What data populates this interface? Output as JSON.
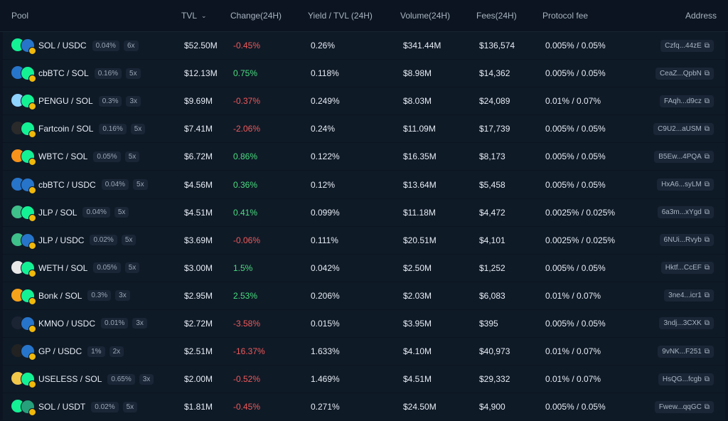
{
  "header": {
    "pool": "Pool",
    "tvl": "TVL",
    "change": "Change(24H)",
    "yield": "Yield / TVL (24H)",
    "volume": "Volume(24H)",
    "fees": "Fees(24H)",
    "protocol_fee": "Protocol fee",
    "address": "Address"
  },
  "rows": [
    {
      "pair": "SOL / USDC",
      "fee_tier": "0.04%",
      "lev": "6x",
      "tvl": "$52.50M",
      "change": "-0.45%",
      "dir": "down",
      "yield": "0.26%",
      "volume": "$341.44M",
      "fees": "$136,574",
      "protocol": "0.005% / 0.05%",
      "address": "Czfq...44zE",
      "icon_a": "sol-icon",
      "icon_b": "usdc-icon",
      "color_a": "#14f195",
      "color_b": "#2775ca"
    },
    {
      "pair": "cbBTC / SOL",
      "fee_tier": "0.16%",
      "lev": "5x",
      "tvl": "$12.13M",
      "change": "0.75%",
      "dir": "up",
      "yield": "0.118%",
      "volume": "$8.98M",
      "fees": "$14,362",
      "protocol": "0.005% / 0.05%",
      "address": "CeaZ...QpbN",
      "icon_a": "cbbtc-icon",
      "icon_b": "sol-icon",
      "color_a": "#2775ca",
      "color_b": "#14f195"
    },
    {
      "pair": "PENGU / SOL",
      "fee_tier": "0.3%",
      "lev": "3x",
      "tvl": "$9.69M",
      "change": "-0.37%",
      "dir": "down",
      "yield": "0.249%",
      "volume": "$8.03M",
      "fees": "$24,089",
      "protocol": "0.01% / 0.07%",
      "address": "FAqh...d9cz",
      "icon_a": "pengu-icon",
      "icon_b": "sol-icon",
      "color_a": "#8fd3ff",
      "color_b": "#14f195"
    },
    {
      "pair": "Fartcoin / SOL",
      "fee_tier": "0.16%",
      "lev": "5x",
      "tvl": "$7.41M",
      "change": "-2.06%",
      "dir": "down",
      "yield": "0.24%",
      "volume": "$11.09M",
      "fees": "$17,739",
      "protocol": "0.005% / 0.05%",
      "address": "C9U2...aUSM",
      "icon_a": "fartcoin-icon",
      "icon_b": "sol-icon",
      "color_a": "#2a2a2a",
      "color_b": "#14f195"
    },
    {
      "pair": "WBTC / SOL",
      "fee_tier": "0.05%",
      "lev": "5x",
      "tvl": "$6.72M",
      "change": "0.86%",
      "dir": "up",
      "yield": "0.122%",
      "volume": "$16.35M",
      "fees": "$8,173",
      "protocol": "0.005% / 0.05%",
      "address": "B5Ew...4PQA",
      "icon_a": "wbtc-icon",
      "icon_b": "sol-icon",
      "color_a": "#f7931a",
      "color_b": "#14f195"
    },
    {
      "pair": "cbBTC / USDC",
      "fee_tier": "0.04%",
      "lev": "5x",
      "tvl": "$4.56M",
      "change": "0.36%",
      "dir": "up",
      "yield": "0.12%",
      "volume": "$13.64M",
      "fees": "$5,458",
      "protocol": "0.005% / 0.05%",
      "address": "HxA6...syLM",
      "icon_a": "cbbtc-icon",
      "icon_b": "usdc-icon",
      "color_a": "#2775ca",
      "color_b": "#2775ca"
    },
    {
      "pair": "JLP / SOL",
      "fee_tier": "0.04%",
      "lev": "5x",
      "tvl": "$4.51M",
      "change": "0.41%",
      "dir": "up",
      "yield": "0.099%",
      "volume": "$11.18M",
      "fees": "$4,472",
      "protocol": "0.0025% / 0.025%",
      "address": "6a3m...xYgd",
      "icon_a": "jlp-icon",
      "icon_b": "sol-icon",
      "color_a": "#3fbf8a",
      "color_b": "#14f195"
    },
    {
      "pair": "JLP / USDC",
      "fee_tier": "0.02%",
      "lev": "5x",
      "tvl": "$3.69M",
      "change": "-0.06%",
      "dir": "down",
      "yield": "0.111%",
      "volume": "$20.51M",
      "fees": "$4,101",
      "protocol": "0.0025% / 0.025%",
      "address": "6NUi...Rvyb",
      "icon_a": "jlp-icon",
      "icon_b": "usdc-icon",
      "color_a": "#3fbf8a",
      "color_b": "#2775ca"
    },
    {
      "pair": "WETH / SOL",
      "fee_tier": "0.05%",
      "lev": "5x",
      "tvl": "$3.00M",
      "change": "1.5%",
      "dir": "up",
      "yield": "0.042%",
      "volume": "$2.50M",
      "fees": "$1,252",
      "protocol": "0.005% / 0.05%",
      "address": "Hktf...CcEF",
      "icon_a": "weth-icon",
      "icon_b": "sol-icon",
      "color_a": "#e8e8e8",
      "color_b": "#14f195"
    },
    {
      "pair": "Bonk / SOL",
      "fee_tier": "0.3%",
      "lev": "3x",
      "tvl": "$2.95M",
      "change": "2.53%",
      "dir": "up",
      "yield": "0.206%",
      "volume": "$2.03M",
      "fees": "$6,083",
      "protocol": "0.01% / 0.07%",
      "address": "3ne4...icr1",
      "icon_a": "bonk-icon",
      "icon_b": "sol-icon",
      "color_a": "#f7a21b",
      "color_b": "#14f195"
    },
    {
      "pair": "KMNO / USDC",
      "fee_tier": "0.01%",
      "lev": "3x",
      "tvl": "$2.72M",
      "change": "-3.58%",
      "dir": "down",
      "yield": "0.015%",
      "volume": "$3.95M",
      "fees": "$395",
      "protocol": "0.005% / 0.05%",
      "address": "3ndj...3CXK",
      "icon_a": "kmno-icon",
      "icon_b": "usdc-icon",
      "color_a": "#1b2433",
      "color_b": "#2775ca"
    },
    {
      "pair": "GP / USDC",
      "fee_tier": "1%",
      "lev": "2x",
      "tvl": "$2.51M",
      "change": "-16.37%",
      "dir": "down",
      "yield": "1.633%",
      "volume": "$4.10M",
      "fees": "$40,973",
      "protocol": "0.01% / 0.07%",
      "address": "9vNK...F251",
      "icon_a": "gp-icon",
      "icon_b": "usdc-icon",
      "color_a": "#222",
      "color_b": "#2775ca"
    },
    {
      "pair": "USELESS / SOL",
      "fee_tier": "0.65%",
      "lev": "3x",
      "tvl": "$2.00M",
      "change": "-0.52%",
      "dir": "down",
      "yield": "1.469%",
      "volume": "$4.51M",
      "fees": "$29,332",
      "protocol": "0.01% / 0.07%",
      "address": "HsQG...fcgb",
      "icon_a": "useless-icon",
      "icon_b": "sol-icon",
      "color_a": "#f2c84b",
      "color_b": "#14f195"
    },
    {
      "pair": "SOL / USDT",
      "fee_tier": "0.02%",
      "lev": "5x",
      "tvl": "$1.81M",
      "change": "-0.45%",
      "dir": "down",
      "yield": "0.271%",
      "volume": "$24.50M",
      "fees": "$4,900",
      "protocol": "0.005% / 0.05%",
      "address": "Fwew...qqGC",
      "icon_a": "sol-icon",
      "icon_b": "usdt-icon",
      "color_a": "#14f195",
      "color_b": "#26a17b"
    }
  ]
}
